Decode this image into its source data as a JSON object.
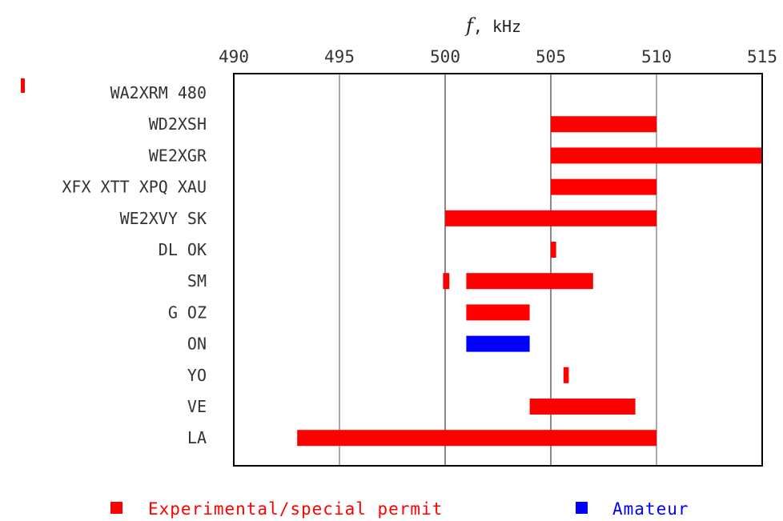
{
  "chart_data": {
    "type": "bar",
    "orientation": "horizontal-range",
    "x_unit_symbol": "f",
    "x_unit_text": ", kHz",
    "xlim": [
      490,
      515
    ],
    "xticks": [
      490,
      495,
      500,
      505,
      510,
      515
    ],
    "gridlines_at": [
      495,
      500,
      505,
      510
    ],
    "categories": [
      "WA2XRM 480",
      "WD2XSH",
      "WE2XGR",
      "XFX XTT XPQ XAU",
      "WE2XVY SK",
      "DL OK",
      "SM",
      "G OZ",
      "ON",
      "YO",
      "VE",
      "LA"
    ],
    "series": [
      {
        "name": "Experimental/special permit",
        "color": "#ff0000",
        "bars": [
          {
            "category": "WD2XSH",
            "start": 505,
            "end": 510
          },
          {
            "category": "WE2XGR",
            "start": 505,
            "end": 515
          },
          {
            "category": "XFX XTT XPQ XAU",
            "start": 505,
            "end": 510
          },
          {
            "category": "WE2XVY SK",
            "start": 500,
            "end": 510
          },
          {
            "category": "DL OK",
            "start": 505,
            "end": 505.25
          },
          {
            "category": "SM",
            "start": 499.9,
            "end": 500.2
          },
          {
            "category": "SM",
            "start": 501,
            "end": 507
          },
          {
            "category": "G OZ",
            "start": 501,
            "end": 504
          },
          {
            "category": "YO",
            "start": 505.6,
            "end": 505.85
          },
          {
            "category": "VE",
            "start": 504,
            "end": 509
          },
          {
            "category": "LA",
            "start": 493,
            "end": 510
          }
        ]
      },
      {
        "name": "Amateur",
        "color": "#0000ff",
        "bars": [
          {
            "category": "ON",
            "start": 501,
            "end": 504
          }
        ]
      }
    ],
    "outside_marker": {
      "category": "WA2XRM 480",
      "color": "#ff0000"
    }
  }
}
